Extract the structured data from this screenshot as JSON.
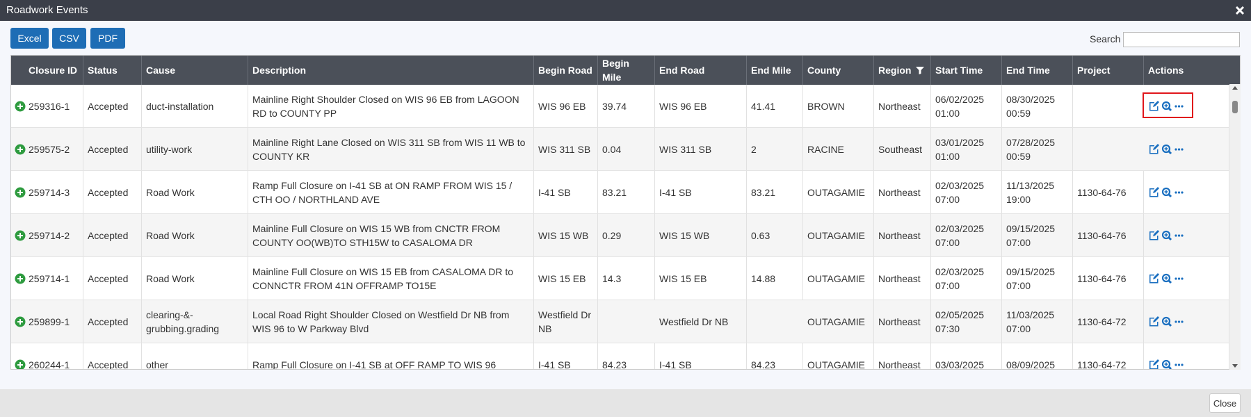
{
  "header": {
    "title": "Roadwork Events"
  },
  "toolbar": {
    "buttons": [
      "Excel",
      "CSV",
      "PDF"
    ],
    "search_label": "Search"
  },
  "table": {
    "columns": [
      "Closure ID",
      "Status",
      "Cause",
      "Description",
      "Begin Road",
      "Begin Mile",
      "End Road",
      "End Mile",
      "County",
      "Region",
      "Start Time",
      "End Time",
      "Project",
      "Actions"
    ],
    "rows": [
      [
        "259316-1",
        "Accepted",
        "duct-installation",
        "Mainline Right Shoulder Closed on WIS 96 EB from LAGOON RD to COUNTY PP",
        "WIS 96 EB",
        39.74,
        "WIS 96 EB",
        41.41,
        "BROWN",
        "Northeast",
        "06/02/2025 01:00",
        "08/30/2025 00:59",
        null
      ],
      [
        "259575-2",
        "Accepted",
        "utility-work",
        "Mainline Right Lane Closed on WIS 311 SB from WIS 11 WB to COUNTY KR",
        "WIS 311 SB",
        0.04,
        "WIS 311 SB",
        2,
        "RACINE",
        "Southeast",
        "03/01/2025 01:00",
        "07/28/2025 00:59",
        null
      ],
      [
        "259714-3",
        "Accepted",
        "Road Work",
        "Ramp Full Closure on I-41 SB at ON RAMP FROM WIS 15 / CTH OO / NORTHLAND AVE",
        "I-41 SB",
        83.21,
        "I-41 SB",
        83.21,
        "OUTAGAMIE",
        "Northeast",
        "02/03/2025 07:00",
        "11/13/2025 19:00",
        "1130-64-76"
      ],
      [
        "259714-2",
        "Accepted",
        "Road Work",
        "Mainline Full Closure on WIS 15 WB from CNCTR FROM COUNTY OO(WB)TO STH15W to CASALOMA DR",
        "WIS 15 WB",
        0.29,
        "WIS 15 WB",
        0.63,
        "OUTAGAMIE",
        "Northeast",
        "02/03/2025 07:00",
        "09/15/2025 07:00",
        "1130-64-76"
      ],
      [
        "259714-1",
        "Accepted",
        "Road Work",
        "Mainline Full Closure on WIS 15 EB from CASALOMA DR to CONNCTR FROM 41N OFFRAMP TO15E",
        "WIS 15 EB",
        14.3,
        "WIS 15 EB",
        14.88,
        "OUTAGAMIE",
        "Northeast",
        "02/03/2025 07:00",
        "09/15/2025 07:00",
        "1130-64-76"
      ],
      [
        "259899-1",
        "Accepted",
        "clearing-&-grubbing.grading",
        "Local Road Right Shoulder Closed on Westfield Dr NB from WIS 96 to W Parkway Blvd",
        "Westfield Dr NB",
        null,
        "Westfield Dr NB",
        null,
        "OUTAGAMIE",
        "Northeast",
        "02/05/2025 07:30",
        "11/03/2025 07:00",
        "1130-64-72"
      ],
      [
        "260244-1",
        "Accepted",
        "other",
        "Ramp Full Closure on I-41 SB at OFF RAMP TO WIS 96",
        "I-41 SB",
        84.23,
        "I-41 SB",
        84.23,
        "OUTAGAMIE",
        "Northeast",
        "03/03/2025",
        "08/09/2025",
        "1130-64-72"
      ]
    ]
  },
  "footer": {
    "close": "Close"
  }
}
